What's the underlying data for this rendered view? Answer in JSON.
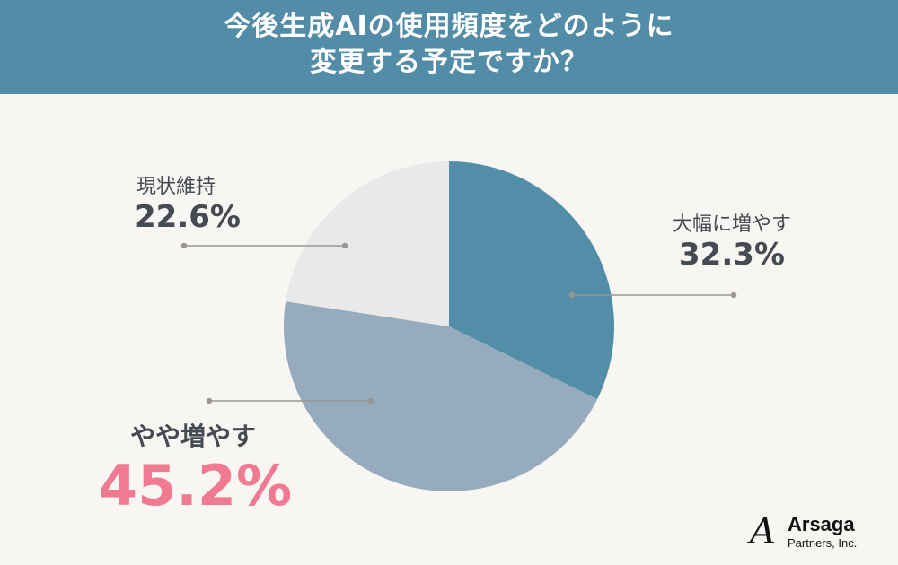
{
  "header": {
    "title_line1": "今後生成AIの使用頻度をどのように",
    "title_line2": "変更する予定ですか？"
  },
  "labels": {
    "significant_increase": {
      "name": "大幅に増やす",
      "value": "32.3%"
    },
    "slight_increase": {
      "name": "やや増やす",
      "value": "45.2%"
    },
    "maintain": {
      "name": "現状維持",
      "value": "22.6%"
    }
  },
  "logo": {
    "mark": "A",
    "name": "Arsaga",
    "sub": "Partners, Inc."
  },
  "colors": {
    "header_bg": "#528ca6",
    "significant_increase": "#538ea8",
    "slight_increase": "#97abbf",
    "maintain": "#e9e9e9",
    "highlight": "#ef7a92",
    "background": "#f7f6f2"
  },
  "chart_data": {
    "type": "pie",
    "title": "今後生成AIの使用頻度をどのように変更する予定ですか？",
    "categories": [
      "大幅に増やす",
      "やや増やす",
      "現状維持"
    ],
    "values": [
      32.3,
      45.2,
      22.6
    ],
    "unit": "%",
    "start_angle": "12 o'clock, clockwise",
    "colors": [
      "#538ea8",
      "#97abbf",
      "#e9e9e9"
    ],
    "highlight": "やや増やす"
  }
}
